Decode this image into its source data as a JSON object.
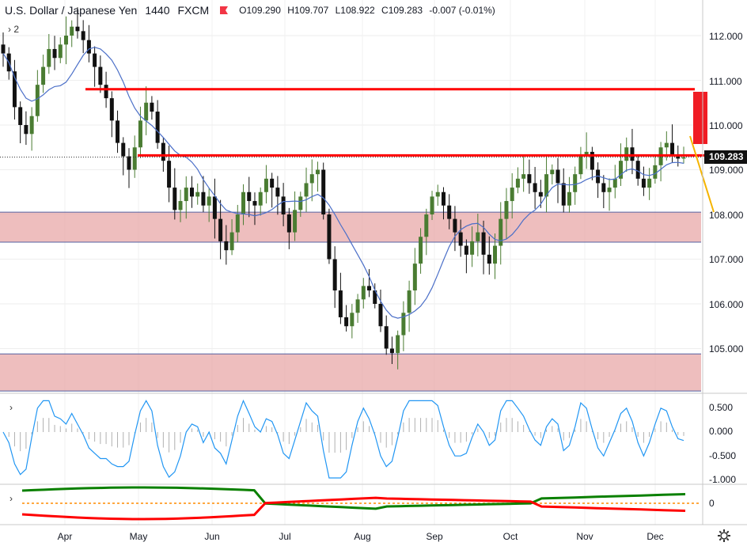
{
  "header": {
    "symbol": "U.S. Dollar / Japanese Yen",
    "interval": "1440",
    "source": "FXCM",
    "flag_color": "#f23645",
    "open": "O109.290",
    "high": "H109.707",
    "low": "L108.922",
    "close": "C109.283",
    "change": "-0.007 (-0.01%)"
  },
  "collapse": {
    "main_label": "2",
    "osc_label": "",
    "dmi_label": ""
  },
  "icons": {
    "collapse_chevron": "chevron-right-icon",
    "settings": "gear-icon",
    "flag": "flag-icon"
  },
  "colors": {
    "up": "#4a7c32",
    "down": "#111111",
    "ma": "#4b6fc8",
    "resistance": "#ff0000",
    "zone": "#e8a8a8",
    "osc_line": "#2196f3",
    "dmi_plus": "#0a8000",
    "dmi_minus": "#ff0000",
    "dmi_ref": "#ff8c00",
    "trend": "#f5b400",
    "arrow_rect": "#f01c24"
  },
  "price_tag": "109.283",
  "price_axis": [
    "112.000",
    "111.000",
    "110.000",
    "109.000",
    "108.000",
    "107.000",
    "106.000",
    "105.000"
  ],
  "osc_axis": [
    "0.500",
    "0.000",
    "-0.500",
    "-1.000"
  ],
  "dmi_axis": [
    "0"
  ],
  "x_axis": [
    "Apr",
    "May",
    "Jun",
    "Jul",
    "Aug",
    "Sep",
    "Oct",
    "Nov",
    "Dec"
  ],
  "chart_data": {
    "type": "candlestick",
    "price_ylim": [
      104.0,
      112.7
    ],
    "levels": {
      "resistance_upper": 110.8,
      "resistance_lower": 109.32,
      "last_price": 109.283
    },
    "zones": [
      {
        "from": 107.38,
        "to": 108.05
      },
      {
        "from": 104.05,
        "to": 104.88
      }
    ],
    "closes": [
      111.6,
      111.2,
      110.4,
      110.0,
      109.8,
      110.2,
      110.9,
      111.3,
      111.7,
      111.5,
      111.8,
      112.0,
      112.2,
      112.1,
      111.9,
      111.6,
      111.3,
      110.9,
      110.6,
      110.1,
      109.6,
      109.3,
      109.0,
      109.5,
      110.1,
      110.5,
      110.3,
      109.6,
      109.2,
      108.6,
      108.1,
      108.3,
      108.6,
      108.4,
      108.5,
      108.2,
      108.4,
      107.9,
      107.4,
      107.2,
      107.6,
      108.0,
      108.5,
      108.3,
      108.2,
      108.5,
      108.8,
      108.6,
      108.4,
      108.0,
      107.6,
      108.1,
      108.4,
      108.7,
      108.9,
      109.0,
      108.0,
      107.0,
      106.3,
      105.7,
      105.5,
      105.8,
      106.1,
      106.4,
      106.3,
      106.0,
      105.5,
      105.0,
      104.9,
      105.3,
      105.8,
      106.3,
      106.9,
      107.5,
      108.0,
      108.4,
      108.5,
      108.2,
      107.9,
      107.6,
      107.3,
      107.1,
      107.4,
      107.6,
      107.1,
      106.9,
      107.3,
      107.9,
      108.3,
      108.6,
      108.8,
      108.9,
      108.7,
      108.5,
      108.4,
      108.9,
      109.0,
      108.7,
      108.2,
      108.5,
      108.9,
      109.3,
      109.4,
      109.0,
      108.7,
      108.5,
      108.6,
      108.8,
      109.2,
      109.5,
      109.2,
      108.8,
      108.6,
      108.8,
      109.1,
      109.5,
      109.6,
      109.3,
      109.25,
      109.28
    ]
  }
}
